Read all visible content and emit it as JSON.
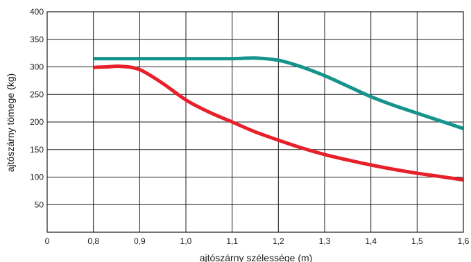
{
  "chart_data": {
    "type": "line",
    "xlabel": "ajtószárny szélessége (m)",
    "ylabel": "ajtószárny tömege (kg)",
    "x_tick_labels": [
      "0",
      "0,8",
      "0,9",
      "1,0",
      "1,1",
      "1,2",
      "1,3",
      "1,4",
      "1,5",
      "1,6"
    ],
    "y_tick_labels": [
      "50",
      "100",
      "150",
      "200",
      "250",
      "300",
      "350",
      "400"
    ],
    "ylim": [
      0,
      400
    ],
    "grid": true,
    "series": [
      {
        "color": "#16948c",
        "x": [
          0.8,
          0.9,
          1.0,
          1.1,
          1.15,
          1.2,
          1.25,
          1.3,
          1.35,
          1.4,
          1.45,
          1.5,
          1.55,
          1.6
        ],
        "y": [
          315,
          315,
          315,
          315,
          316,
          312,
          300,
          284,
          265,
          246,
          230,
          216,
          202,
          188
        ]
      },
      {
        "color": "#e8202a",
        "x": [
          0.8,
          0.83,
          0.86,
          0.9,
          0.95,
          1.0,
          1.05,
          1.1,
          1.15,
          1.2,
          1.25,
          1.3,
          1.35,
          1.4,
          1.45,
          1.5,
          1.55,
          1.6
        ],
        "y": [
          299,
          300,
          301,
          295,
          270,
          240,
          218,
          200,
          182,
          167,
          153,
          141,
          131,
          122,
          114,
          107,
          101,
          95
        ]
      }
    ]
  }
}
